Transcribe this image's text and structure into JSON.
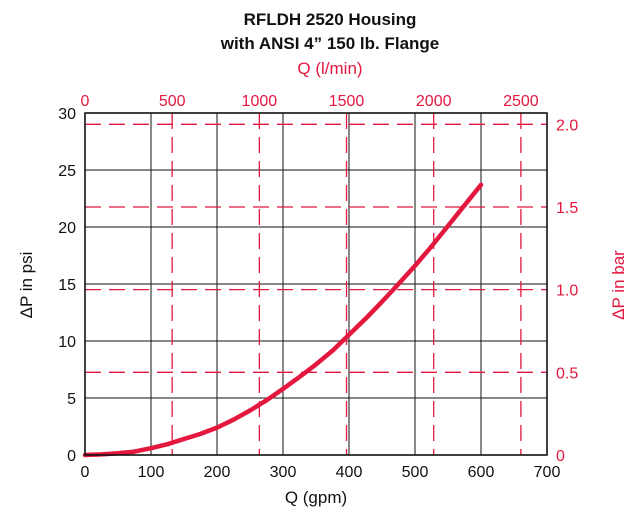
{
  "chart_data": {
    "type": "line",
    "title": [
      "RFLDH 2520 Housing",
      "with ANSI 4” 150 lb. Flange"
    ],
    "xlabel": "Q (gpm)",
    "ylabel": "ΔP in psi",
    "x2label": "Q (l/min)",
    "y2label": "ΔP in bar",
    "xlim": [
      0,
      700
    ],
    "ylim": [
      0,
      30
    ],
    "x2lim": [
      0,
      2649.79
    ],
    "y2lim": [
      0,
      2.0684
    ],
    "x_ticks": [
      "0",
      "100",
      "200",
      "300",
      "400",
      "500",
      "600",
      "700"
    ],
    "y_ticks": [
      "0",
      "5",
      "10",
      "15",
      "20",
      "25",
      "30"
    ],
    "x2_ticks": [
      "0",
      "500",
      "1000",
      "1500",
      "2000",
      "2500"
    ],
    "y2_ticks": [
      "0",
      "0.5",
      "1.0",
      "1.5",
      "2.0"
    ],
    "grid": true,
    "colors": {
      "curve": "#e4173e",
      "secondary_axes": "#e4173e",
      "primary_axes": "#111111"
    },
    "series": [
      {
        "x": [
          0,
          25,
          50,
          75,
          100,
          125,
          150,
          175,
          200,
          225,
          250,
          275,
          300,
          325,
          350,
          375,
          400,
          425,
          450,
          475,
          500,
          525,
          550,
          575,
          600
        ],
        "y": [
          0,
          0.05,
          0.15,
          0.3,
          0.6,
          0.95,
          1.4,
          1.85,
          2.4,
          3.1,
          3.9,
          4.8,
          5.8,
          6.85,
          7.95,
          9.15,
          10.55,
          11.95,
          13.45,
          15.0,
          16.6,
          18.3,
          20.1,
          21.9,
          23.7
        ]
      }
    ]
  }
}
